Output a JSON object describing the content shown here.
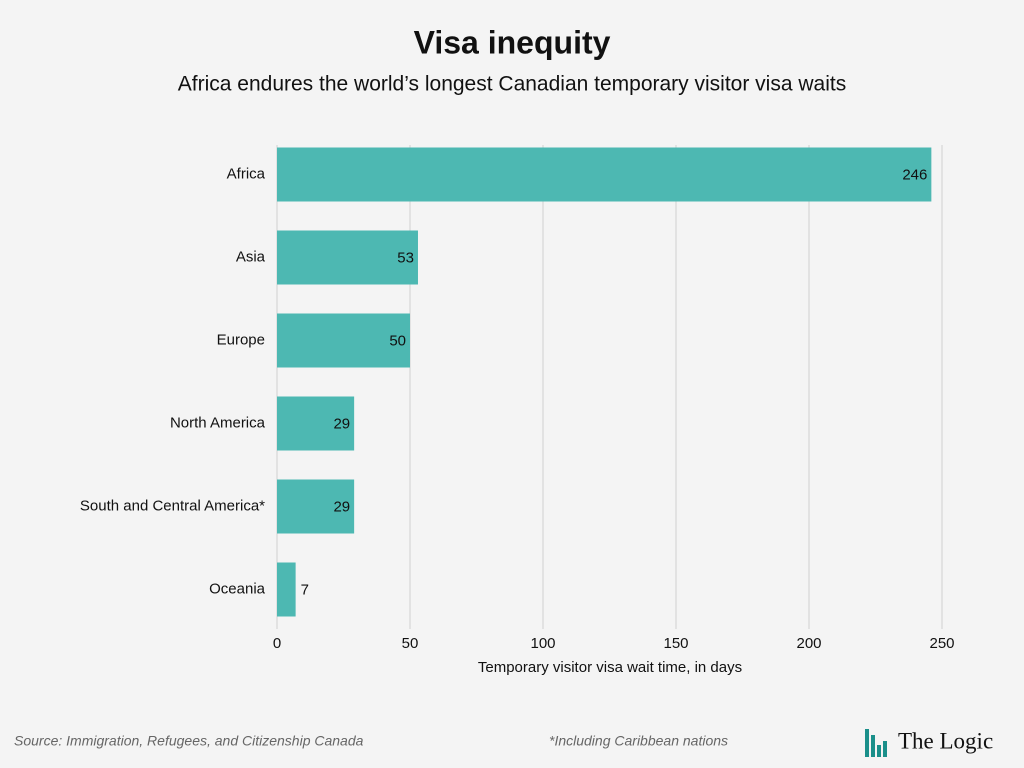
{
  "chart_data": {
    "type": "bar",
    "orientation": "horizontal",
    "title": "Visa inequity",
    "subtitle": "Africa endures the world’s longest Canadian temporary visitor visa waits",
    "categories": [
      "Africa",
      "Asia",
      "Europe",
      "North America",
      "South and Central America*",
      "Oceania"
    ],
    "values": [
      246,
      53,
      50,
      29,
      29,
      7
    ],
    "color": "#4db8b2",
    "xlim": [
      0,
      250
    ],
    "xticks": [
      0,
      50,
      100,
      150,
      200,
      250
    ],
    "grid": true,
    "xlabel": "Temporary visitor visa wait time, in days",
    "source": "Source: Immigration, Refugees, and Citizenship Canada",
    "note": "*Including Caribbean nations",
    "brand": "The Logic"
  }
}
